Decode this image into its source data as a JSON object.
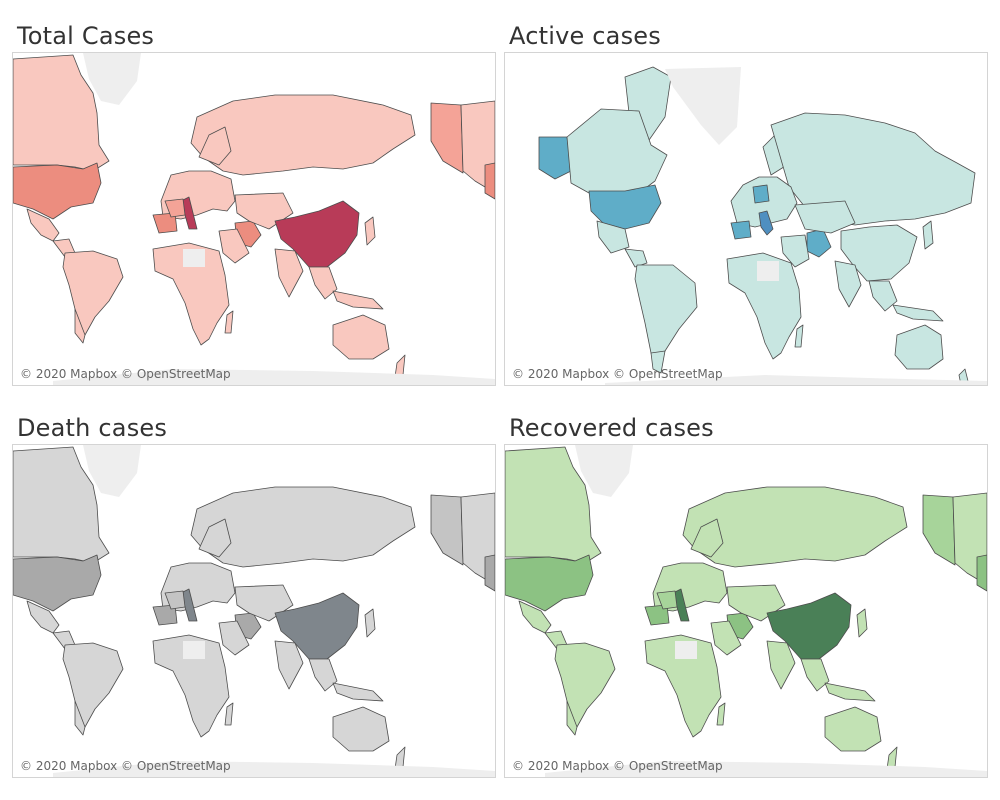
{
  "theme": {
    "unknown_land": "#eeeeee",
    "border": "#4d4d4d",
    "background": "#ffffff"
  },
  "panels": [
    {
      "id": "total",
      "title": "Total Cases",
      "attribution": "© 2020 Mapbox © OpenStreetMap",
      "colors": {
        "base": "#f9c8bf",
        "mid": "#f4a397",
        "high": "#ec8d7f",
        "top": "#b83b58"
      }
    },
    {
      "id": "active",
      "title": "Active cases",
      "attribution": "© 2020 Mapbox © OpenStreetMap",
      "colors": {
        "base": "#c8e6e1",
        "mid": "#8ac8cd",
        "high": "#5fadc8",
        "top": "#4f8fc0"
      }
    },
    {
      "id": "death",
      "title": "Death cases",
      "attribution": "© 2020 Mapbox © OpenStreetMap",
      "colors": {
        "base": "#d6d6d6",
        "mid": "#c4c4c4",
        "high": "#a9a9a9",
        "top": "#7f868c"
      }
    },
    {
      "id": "recovered",
      "title": "Recovered cases",
      "attribution": "© 2020 Mapbox © OpenStreetMap",
      "colors": {
        "base": "#c2e2b4",
        "mid": "#a7d49a",
        "high": "#8cc283",
        "top": "#4a8057"
      }
    }
  ]
}
